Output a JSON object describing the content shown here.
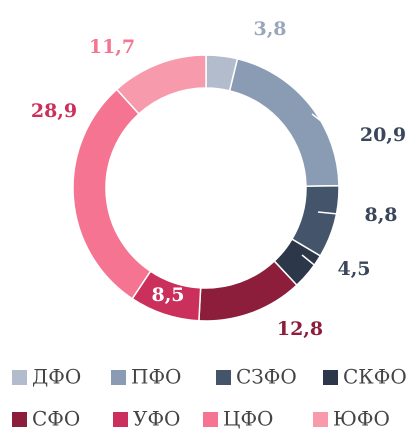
{
  "chart_data": {
    "type": "donut",
    "categories": [
      "ДФО",
      "ПФО",
      "СЗФО",
      "СКФО",
      "СФО",
      "УФО",
      "ЦФО",
      "ЮФО"
    ],
    "values": [
      3.8,
      20.9,
      8.8,
      4.5,
      12.8,
      8.5,
      28.9,
      11.7
    ],
    "value_labels": [
      "3,8",
      "20,9",
      "8,8",
      "4,5",
      "12,8",
      "8,5",
      "28,9",
      "11,7"
    ],
    "colors": [
      "#b3bccc",
      "#8a9bb4",
      "#44546a",
      "#2c3749",
      "#8c1d3b",
      "#cb2f5b",
      "#f47491",
      "#f69aac"
    ]
  }
}
